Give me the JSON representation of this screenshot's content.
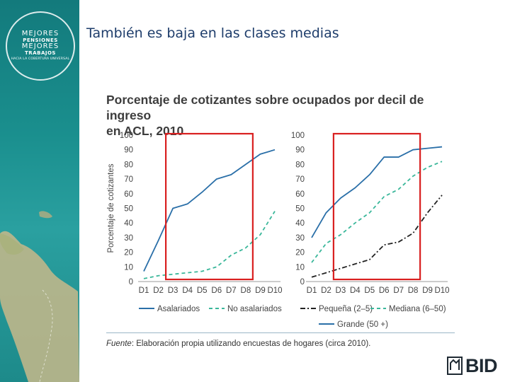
{
  "slide": {
    "title": "También es baja en las clases medias"
  },
  "logo": {
    "line1": "MEJORES",
    "line2": "PENSIONES",
    "line3": "MEJORES",
    "line4": "TRABAJOS",
    "line5": "HACIA LA COBERTURA UNIVERSAL"
  },
  "chart_header": {
    "line1": "Porcentaje de cotizantes sobre ocupados por decil de ingreso",
    "line2": "en ACL, 2010"
  },
  "source": {
    "label": "Fuente",
    "text": ": Elaboración propia utilizando encuestas de hogares (circa 2010)."
  },
  "brand": {
    "name": "BID"
  },
  "colors": {
    "blue": "#2a6fa8",
    "green": "#3ab79a",
    "black": "#222222",
    "highlight": "#d92020"
  },
  "chart_data": [
    {
      "type": "line",
      "ylabel": "Porcentaje de cotizantes",
      "ylim": [
        0,
        100
      ],
      "yticks": [
        "0",
        "10",
        "20",
        "30",
        "40",
        "50",
        "60",
        "70",
        "80",
        "90",
        "100"
      ],
      "categories": [
        "D1",
        "D2",
        "D3",
        "D4",
        "D5",
        "D6",
        "D7",
        "D8",
        "D9",
        "D10"
      ],
      "highlight_range": [
        "D3",
        "D8"
      ],
      "series": [
        {
          "name": "Asalariados",
          "style": "solid",
          "color": "blue",
          "values": [
            7,
            28,
            50,
            53,
            61,
            70,
            73,
            80,
            87,
            90
          ]
        },
        {
          "name": "No asalariados",
          "style": "dashed",
          "color": "green",
          "values": [
            2,
            4,
            5,
            6,
            7,
            10,
            18,
            23,
            32,
            48
          ]
        }
      ]
    },
    {
      "type": "line",
      "ylim": [
        0,
        100
      ],
      "yticks": [
        "0",
        "10",
        "20",
        "30",
        "40",
        "50",
        "60",
        "70",
        "80",
        "90",
        "100"
      ],
      "categories": [
        "D1",
        "D2",
        "D3",
        "D4",
        "D5",
        "D6",
        "D7",
        "D8",
        "D9",
        "D10"
      ],
      "highlight_range": [
        "D3",
        "D8"
      ],
      "series": [
        {
          "name": "Pequeña (2–5)",
          "style": "dashdot",
          "color": "black",
          "values": [
            3,
            6,
            9,
            12,
            15,
            25,
            27,
            33,
            47,
            59
          ]
        },
        {
          "name": "Mediana (6–50)",
          "style": "dashed",
          "color": "green",
          "values": [
            13,
            26,
            32,
            40,
            47,
            58,
            63,
            72,
            78,
            82
          ]
        },
        {
          "name": "Grande (50 +)",
          "style": "solid",
          "color": "blue",
          "values": [
            30,
            47,
            57,
            64,
            73,
            85,
            85,
            90,
            91,
            92
          ]
        }
      ]
    }
  ]
}
